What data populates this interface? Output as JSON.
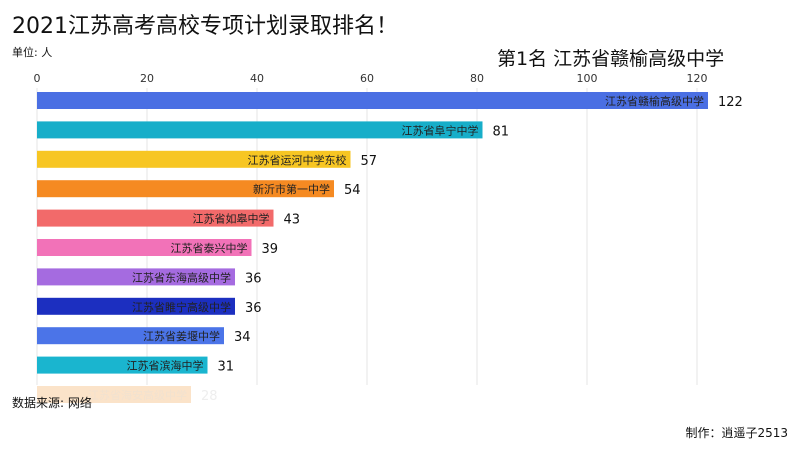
{
  "title": "2021江苏高考高校专项计划录取排名！",
  "unit": "单位: 人",
  "rank_label": "第1名 江苏省赣榆高级中学",
  "source": "数据来源: 网络",
  "credit": "制作：逍遥子2513",
  "chart_data": {
    "type": "bar",
    "orientation": "horizontal",
    "xlim": [
      0,
      120
    ],
    "ticks": [
      "0",
      "20",
      "40",
      "60",
      "80",
      "100",
      "120"
    ],
    "grid": true,
    "categories": [
      "江苏省赣榆高级中学",
      "江苏省阜宁中学",
      "江苏省运河中学东校",
      "新沂市第一中学",
      "江苏省如皋中学",
      "江苏省泰兴中学",
      "江苏省东海高级中学",
      "江苏省睢宁高级中学",
      "江苏省姜堰中学",
      "江苏省滨海中学",
      "江苏省海安高级中学"
    ],
    "values": [
      122,
      81,
      57,
      54,
      43,
      39,
      36,
      36,
      34,
      31,
      28
    ],
    "colors": [
      "#4a6fe3",
      "#17aec9",
      "#f7c623",
      "#f58a22",
      "#f26a6a",
      "#f272b8",
      "#a56be0",
      "#1c2fc0",
      "#4b74e8",
      "#1ab5cf",
      "#fbe3c9"
    ]
  }
}
